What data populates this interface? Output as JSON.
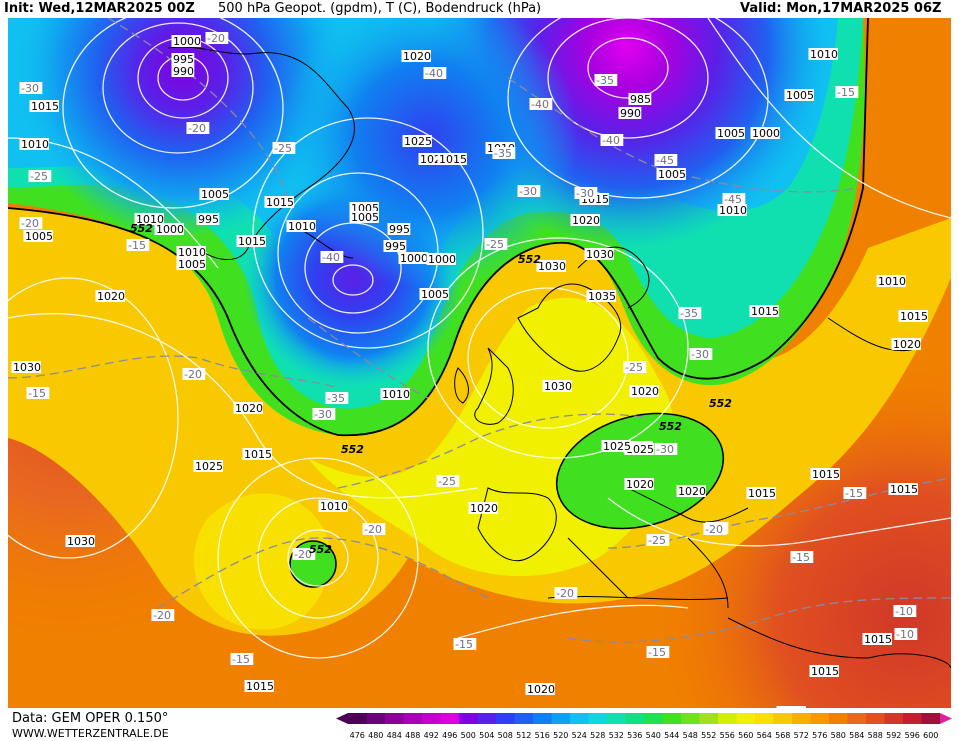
{
  "header": {
    "init": "Init: Wed,12MAR2025 00Z",
    "title": "500 hPa Geopot. (gpdm), T (C), Bodendruck (hPa)",
    "valid": "Valid: Mon,17MAR2025 06Z"
  },
  "footer": {
    "source": "Data: GEM OPER 0.150°",
    "site": "WWW.WETTERZENTRALE.DE"
  },
  "legend": {
    "values": [
      "476",
      "480",
      "484",
      "488",
      "492",
      "496",
      "500",
      "504",
      "508",
      "512",
      "516",
      "520",
      "524",
      "528",
      "532",
      "536",
      "540",
      "544",
      "548",
      "552",
      "556",
      "560",
      "564",
      "568",
      "572",
      "576",
      "580",
      "584",
      "588",
      "592",
      "596",
      "600"
    ],
    "colors": [
      "#4b0055",
      "#6a007a",
      "#8a0098",
      "#a800b4",
      "#c400cc",
      "#dc00dc",
      "#8000e0",
      "#5a20e8",
      "#3040f0",
      "#2060f0",
      "#1080f0",
      "#10a0f0",
      "#10c0f0",
      "#10d8e0",
      "#10e0b0",
      "#10e080",
      "#20e050",
      "#40e020",
      "#70e020",
      "#a0e020",
      "#d0f000",
      "#f0f000",
      "#f8e000",
      "#f8c800",
      "#f8b000",
      "#f89800",
      "#f08000",
      "#e86820",
      "#e05020",
      "#d03828",
      "#c02030",
      "#a01038"
    ],
    "arrow_left_color": "#4b0055",
    "arrow_right_color": "#e020a0"
  },
  "map": {
    "isobar_labels": [
      {
        "t": "1010"
      },
      {
        "t": "1005"
      },
      {
        "t": "1000"
      },
      {
        "t": "995"
      },
      {
        "t": "990"
      },
      {
        "t": "1020"
      },
      {
        "t": "1015"
      },
      {
        "t": "1010"
      },
      {
        "t": "1005"
      },
      {
        "t": "995"
      },
      {
        "t": "1000"
      },
      {
        "t": "1005"
      },
      {
        "t": "1010"
      },
      {
        "t": "1015"
      },
      {
        "t": "1020"
      },
      {
        "t": "1025"
      },
      {
        "t": "1020"
      },
      {
        "t": "1015"
      },
      {
        "t": "1010"
      },
      {
        "t": "1005"
      },
      {
        "t": "1005"
      },
      {
        "t": "1000"
      },
      {
        "t": "995"
      },
      {
        "t": "1000"
      },
      {
        "t": "1005"
      },
      {
        "t": "1010"
      },
      {
        "t": "1015"
      },
      {
        "t": "1020"
      },
      {
        "t": "1025"
      },
      {
        "t": "1030"
      },
      {
        "t": "1035"
      },
      {
        "t": "1030"
      },
      {
        "t": "1030"
      },
      {
        "t": "1025"
      },
      {
        "t": "1020"
      },
      {
        "t": "1020"
      },
      {
        "t": "1015"
      },
      {
        "t": "1015"
      },
      {
        "t": "1010"
      },
      {
        "t": "1005"
      },
      {
        "t": "1010"
      },
      {
        "t": "1015"
      },
      {
        "t": "1020"
      },
      {
        "t": "1025"
      },
      {
        "t": "1030"
      },
      {
        "t": "1030"
      },
      {
        "t": "1025"
      },
      {
        "t": "1020"
      },
      {
        "t": "1020"
      },
      {
        "t": "1015"
      },
      {
        "t": "1010"
      },
      {
        "t": "1015"
      },
      {
        "t": "1020"
      },
      {
        "t": "1010"
      },
      {
        "t": "1005"
      },
      {
        "t": "995"
      },
      {
        "t": "985"
      },
      {
        "t": "990"
      },
      {
        "t": "1000"
      },
      {
        "t": "1005"
      },
      {
        "t": "1010"
      },
      {
        "t": "1015"
      },
      {
        "t": "1015"
      },
      {
        "t": "1020"
      },
      {
        "t": "1015"
      },
      {
        "t": "1015"
      },
      {
        "t": "1015"
      },
      {
        "t": "1020"
      },
      {
        "t": "1015"
      }
    ],
    "temp_labels": [
      {
        "t": "-30"
      },
      {
        "t": "-25"
      },
      {
        "t": "-20"
      },
      {
        "t": "-15"
      },
      {
        "t": "-25"
      },
      {
        "t": "-20"
      },
      {
        "t": "-15"
      },
      {
        "t": "-40"
      },
      {
        "t": "-35"
      },
      {
        "t": "-30"
      },
      {
        "t": "-40"
      },
      {
        "t": "-35"
      },
      {
        "t": "-30"
      },
      {
        "t": "-25"
      },
      {
        "t": "-20"
      },
      {
        "t": "-40"
      },
      {
        "t": "-35"
      },
      {
        "t": "-40"
      },
      {
        "t": "-45"
      },
      {
        "t": "-45"
      },
      {
        "t": "-35"
      },
      {
        "t": "-30"
      },
      {
        "t": "-25"
      },
      {
        "t": "-30"
      },
      {
        "t": "-25"
      },
      {
        "t": "-25"
      },
      {
        "t": "-20"
      },
      {
        "t": "-20"
      },
      {
        "t": "-20"
      },
      {
        "t": "-20"
      },
      {
        "t": "-15"
      },
      {
        "t": "-15"
      },
      {
        "t": "-20"
      },
      {
        "t": "-25"
      },
      {
        "t": "-20"
      },
      {
        "t": "-15"
      },
      {
        "t": "-15"
      },
      {
        "t": "-10"
      },
      {
        "t": "-15"
      },
      {
        "t": "-10"
      },
      {
        "t": "-20"
      },
      {
        "t": "-30"
      },
      {
        "t": "-15"
      }
    ],
    "geopot_labels": [
      {
        "t": "552"
      },
      {
        "t": "552"
      },
      {
        "t": "552"
      },
      {
        "t": "552"
      },
      {
        "t": "552"
      },
      {
        "t": "552"
      }
    ]
  }
}
